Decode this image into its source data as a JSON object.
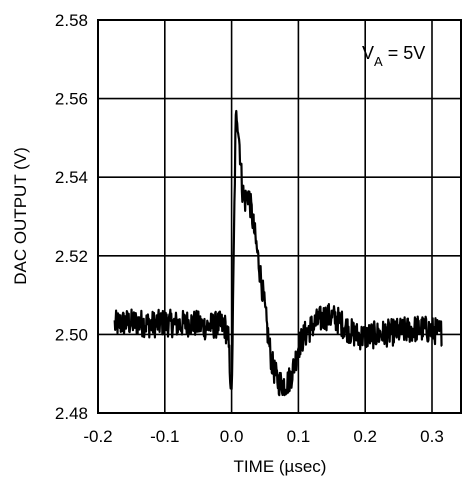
{
  "chart_data": {
    "type": "line",
    "title": "",
    "xlabel": "TIME (µsec)",
    "ylabel": "DAC OUTPUT (V)",
    "xlim": [
      -0.2,
      0.325
    ],
    "ylim": [
      2.48,
      2.58
    ],
    "xticks": [
      -0.2,
      -0.1,
      0.0,
      0.1,
      0.2,
      0.3
    ],
    "xtick_labels": [
      "-0.2",
      "-0.1",
      "0.0",
      "0.1",
      "0.2",
      "0.3"
    ],
    "yticks": [
      2.48,
      2.5,
      2.52,
      2.54,
      2.56,
      2.58
    ],
    "ytick_labels": [
      "2.48",
      "2.50",
      "2.52",
      "2.54",
      "2.56",
      "2.58"
    ],
    "grid": true,
    "annotation": {
      "main": "V",
      "sub": "A",
      "rest": " = 5V",
      "position": "top-right"
    },
    "series": [
      {
        "noise_amplitude": 0.0035,
        "x": [
          -0.175,
          -0.16,
          -0.14,
          -0.12,
          -0.1,
          -0.08,
          -0.06,
          -0.04,
          -0.02,
          -0.01,
          -0.005,
          -0.002,
          0.0,
          0.002,
          0.004,
          0.006,
          0.008,
          0.012,
          0.016,
          0.02,
          0.025,
          0.03,
          0.035,
          0.04,
          0.045,
          0.05,
          0.055,
          0.06,
          0.065,
          0.07,
          0.075,
          0.08,
          0.085,
          0.09,
          0.095,
          0.1,
          0.11,
          0.12,
          0.13,
          0.14,
          0.15,
          0.16,
          0.17,
          0.18,
          0.19,
          0.2,
          0.22,
          0.24,
          0.26,
          0.28,
          0.3,
          0.315
        ],
        "y": [
          2.5025,
          2.503,
          2.503,
          2.5025,
          2.503,
          2.5025,
          2.503,
          2.502,
          2.5025,
          2.502,
          2.499,
          2.49,
          2.484,
          2.505,
          2.53,
          2.553,
          2.557,
          2.548,
          2.537,
          2.534,
          2.536,
          2.531,
          2.525,
          2.519,
          2.513,
          2.506,
          2.499,
          2.493,
          2.49,
          2.488,
          2.4875,
          2.4875,
          2.488,
          2.49,
          2.493,
          2.497,
          2.5,
          2.502,
          2.5035,
          2.5045,
          2.5045,
          2.5035,
          2.502,
          2.5005,
          2.4995,
          2.4995,
          2.5,
          2.5005,
          2.501,
          2.5015,
          2.501,
          2.5005
        ]
      }
    ]
  }
}
